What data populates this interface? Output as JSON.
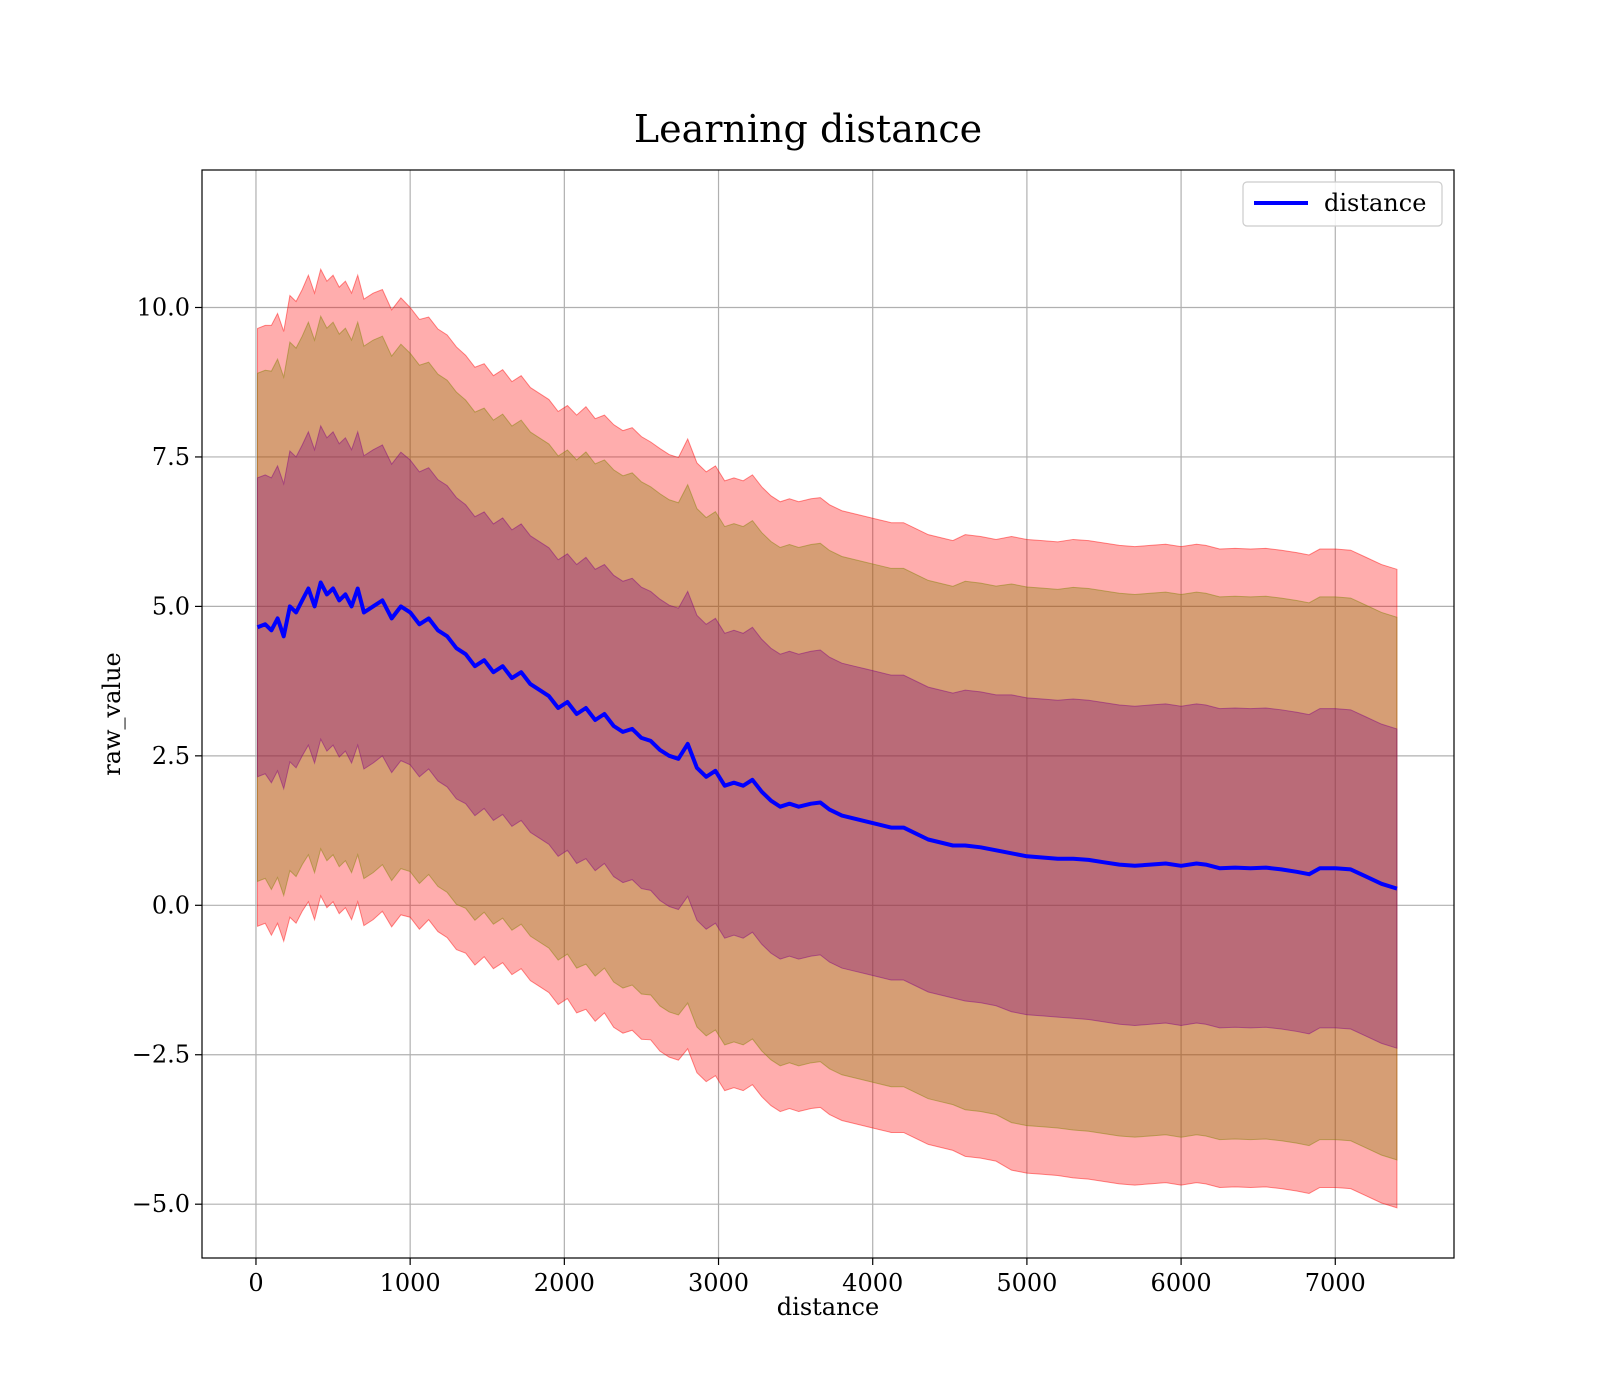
{
  "chart_data": {
    "type": "line",
    "title": "Learning distance",
    "xlabel": "distance",
    "ylabel": "raw_value",
    "xlim": [
      -350,
      7770
    ],
    "ylim": [
      -5.9,
      12.3
    ],
    "grid": true,
    "legend_position": "top-right",
    "x_ticks": [
      0,
      1000,
      2000,
      3000,
      4000,
      5000,
      6000,
      7000
    ],
    "x_tick_labels": [
      "0",
      "1000",
      "2000",
      "3000",
      "4000",
      "5000",
      "6000",
      "7000"
    ],
    "y_ticks": [
      -5.0,
      -2.5,
      0.0,
      2.5,
      5.0,
      7.5,
      10.0
    ],
    "y_tick_labels": [
      "−5.0",
      "−2.5",
      "0.0",
      "2.5",
      "5.0",
      "7.5",
      "10.0"
    ],
    "bands": [
      {
        "sigma": 2,
        "color": "#ff0000",
        "opacity": 0.32
      },
      {
        "sigma": 1.7,
        "color": "#808000",
        "opacity": 0.32
      },
      {
        "sigma": 1,
        "color": "#800080",
        "opacity": 0.32
      }
    ],
    "series": [
      {
        "name": "distance",
        "color": "#0000ff",
        "x": [
          10,
          60,
          100,
          140,
          180,
          220,
          260,
          300,
          340,
          380,
          420,
          460,
          500,
          540,
          580,
          620,
          660,
          700,
          760,
          820,
          880,
          940,
          1000,
          1060,
          1120,
          1180,
          1240,
          1300,
          1360,
          1420,
          1480,
          1540,
          1600,
          1660,
          1720,
          1780,
          1840,
          1900,
          1960,
          2020,
          2080,
          2140,
          2200,
          2260,
          2320,
          2380,
          2440,
          2500,
          2560,
          2620,
          2680,
          2740,
          2800,
          2860,
          2920,
          2980,
          3040,
          3100,
          3160,
          3220,
          3280,
          3340,
          3400,
          3460,
          3520,
          3600,
          3660,
          3720,
          3800,
          3880,
          3960,
          4040,
          4120,
          4200,
          4280,
          4360,
          4440,
          4520,
          4600,
          4700,
          4800,
          4900,
          5000,
          5100,
          5200,
          5300,
          5400,
          5500,
          5600,
          5700,
          5800,
          5900,
          6000,
          6100,
          6160,
          6250,
          6350,
          6450,
          6550,
          6650,
          6750,
          6830,
          6900,
          7000,
          7100,
          7200,
          7300,
          7400
        ],
        "y": [
          4.65,
          4.7,
          4.6,
          4.8,
          4.5,
          5.0,
          4.9,
          5.1,
          5.3,
          5.0,
          5.4,
          5.2,
          5.3,
          5.1,
          5.2,
          5.0,
          5.3,
          4.9,
          5.0,
          5.1,
          4.8,
          5.0,
          4.9,
          4.7,
          4.8,
          4.6,
          4.5,
          4.3,
          4.2,
          4.0,
          4.1,
          3.9,
          4.0,
          3.8,
          3.9,
          3.7,
          3.6,
          3.5,
          3.3,
          3.4,
          3.2,
          3.3,
          3.1,
          3.2,
          3.0,
          2.9,
          2.95,
          2.8,
          2.75,
          2.6,
          2.5,
          2.45,
          2.7,
          2.3,
          2.15,
          2.25,
          2.0,
          2.05,
          2.0,
          2.1,
          1.9,
          1.75,
          1.65,
          1.7,
          1.65,
          1.7,
          1.72,
          1.6,
          1.5,
          1.45,
          1.4,
          1.35,
          1.3,
          1.3,
          1.2,
          1.1,
          1.05,
          1.0,
          1.0,
          0.97,
          0.92,
          0.87,
          0.82,
          0.8,
          0.78,
          0.78,
          0.76,
          0.72,
          0.68,
          0.66,
          0.68,
          0.7,
          0.66,
          0.7,
          0.68,
          0.62,
          0.63,
          0.62,
          0.63,
          0.6,
          0.56,
          0.52,
          0.62,
          0.62,
          0.6,
          0.48,
          0.36,
          0.28
        ],
        "std": [
          2.5,
          2.5,
          2.55,
          2.55,
          2.55,
          2.6,
          2.6,
          2.6,
          2.62,
          2.62,
          2.62,
          2.62,
          2.62,
          2.62,
          2.62,
          2.62,
          2.62,
          2.62,
          2.62,
          2.6,
          2.58,
          2.58,
          2.55,
          2.55,
          2.52,
          2.52,
          2.52,
          2.52,
          2.5,
          2.5,
          2.48,
          2.48,
          2.48,
          2.48,
          2.48,
          2.48,
          2.48,
          2.48,
          2.48,
          2.48,
          2.5,
          2.52,
          2.52,
          2.5,
          2.52,
          2.52,
          2.52,
          2.52,
          2.5,
          2.52,
          2.52,
          2.52,
          2.55,
          2.55,
          2.55,
          2.55,
          2.55,
          2.55,
          2.55,
          2.55,
          2.55,
          2.55,
          2.55,
          2.55,
          2.55,
          2.55,
          2.55,
          2.55,
          2.55,
          2.55,
          2.55,
          2.55,
          2.55,
          2.55,
          2.55,
          2.55,
          2.55,
          2.55,
          2.6,
          2.6,
          2.6,
          2.65,
          2.65,
          2.65,
          2.65,
          2.67,
          2.67,
          2.67,
          2.67,
          2.67,
          2.67,
          2.67,
          2.67,
          2.67,
          2.67,
          2.67,
          2.67,
          2.67,
          2.67,
          2.67,
          2.67,
          2.67,
          2.67,
          2.67,
          2.67,
          2.67,
          2.67,
          2.67
        ]
      }
    ]
  }
}
